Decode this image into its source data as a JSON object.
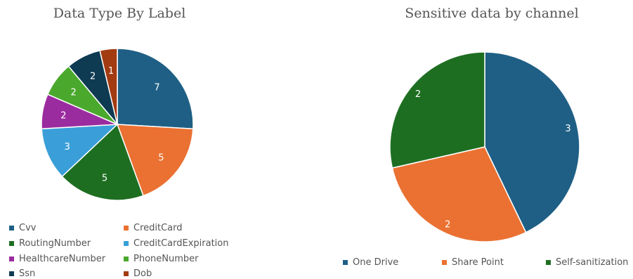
{
  "chart_data": [
    {
      "type": "pie",
      "title": "Data Type By Label",
      "categories": [
        "Cvv",
        "CreditCard",
        "RoutingNumber",
        "CreditCardExpiration",
        "HealthcareNumber",
        "PhoneNumber",
        "Ssn",
        "Dob"
      ],
      "values": [
        7,
        5,
        5,
        3,
        2,
        2,
        2,
        1
      ],
      "data_labels": [
        "7",
        "5",
        "5",
        "3",
        "2",
        "2",
        "2",
        "1"
      ],
      "colors": [
        "#1f5f85",
        "#ea7132",
        "#1e6e22",
        "#3a9fd8",
        "#9b2c9f",
        "#4aa82d",
        "#0e3b52",
        "#a33b12"
      ],
      "legend": "bottom"
    },
    {
      "type": "pie",
      "title": "Sensitive data by channel",
      "categories": [
        "One Drive",
        "Share Point",
        "Self-sanitization"
      ],
      "values": [
        3,
        2,
        2
      ],
      "data_labels": [
        "3",
        "2",
        "2"
      ],
      "colors": [
        "#1f5f85",
        "#ea7132",
        "#1e6e22"
      ],
      "legend": "bottom"
    }
  ]
}
